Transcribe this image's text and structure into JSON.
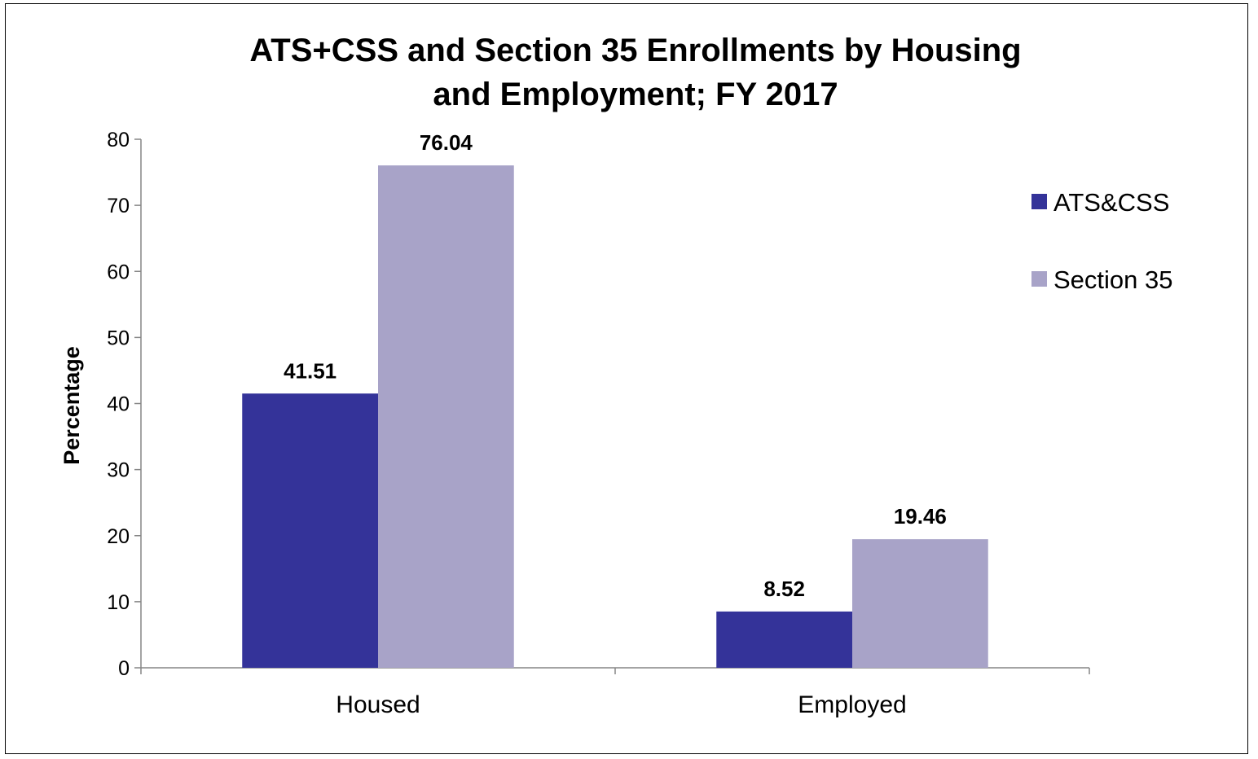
{
  "chart_data": {
    "type": "bar",
    "title_lines": [
      "ATS+CSS  and Section 35 Enrollments by Housing",
      "and Employment; FY 2017"
    ],
    "categories": [
      "Housed",
      "Employed"
    ],
    "series": [
      {
        "name": "ATS&CSS",
        "values": [
          41.51,
          8.52
        ],
        "color": "#343399"
      },
      {
        "name": "Section 35",
        "values": [
          76.04,
          19.46
        ],
        "color": "#A8A3C8"
      }
    ],
    "data_labels": [
      [
        "41.51",
        "8.52"
      ],
      [
        "76.04",
        "19.46"
      ]
    ],
    "xlabel": "",
    "ylabel": "Percentage",
    "ylim": [
      0,
      80
    ],
    "yticks": [
      0,
      10,
      20,
      30,
      40,
      50,
      60,
      70,
      80
    ],
    "grid": false,
    "legend_position": "right"
  }
}
